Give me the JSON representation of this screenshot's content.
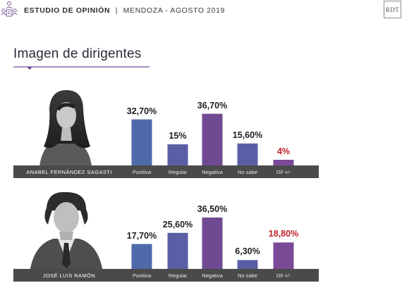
{
  "header": {
    "title_bold": "ESTUDIO DE OPINIÓN",
    "separator": "|",
    "subtitle": "MENDOZA - AGOSTO 2019",
    "logo_text": "RDT"
  },
  "section_title": "Imagen de dirigentes",
  "colors": {
    "positiva": "#4f6aa9",
    "regular": "#5a5fa5",
    "negativa": "#6f4a93",
    "no_sabe": "#5a5fa5",
    "dif": "#7a4a97",
    "baseline": "#4a4a4a",
    "diff_text": "#c0202a",
    "title_rule": "#6f4a93"
  },
  "chart_data": [
    {
      "type": "bar",
      "person": "ANABEL FERNÁNDEZ SAGASTI",
      "categories": [
        "Positiva",
        "Regular",
        "Negativa",
        "No sabe",
        "Dif +/-"
      ],
      "values": [
        32.7,
        15,
        36.7,
        15.6,
        4
      ],
      "value_labels": [
        "32,70%",
        "15%",
        "36,70%",
        "15,60%",
        "4%"
      ],
      "ylim": [
        0,
        40
      ]
    },
    {
      "type": "bar",
      "person": "JOSÉ LUIS RAMÓN",
      "categories": [
        "Positiva",
        "Regular",
        "Negativa",
        "No sabe",
        "Dif +/-"
      ],
      "values": [
        17.7,
        25.6,
        36.5,
        6.3,
        18.8
      ],
      "value_labels": [
        "17,70%",
        "25,60%",
        "36,50%",
        "6,30%",
        "18,80%"
      ],
      "ylim": [
        0,
        40
      ]
    }
  ]
}
